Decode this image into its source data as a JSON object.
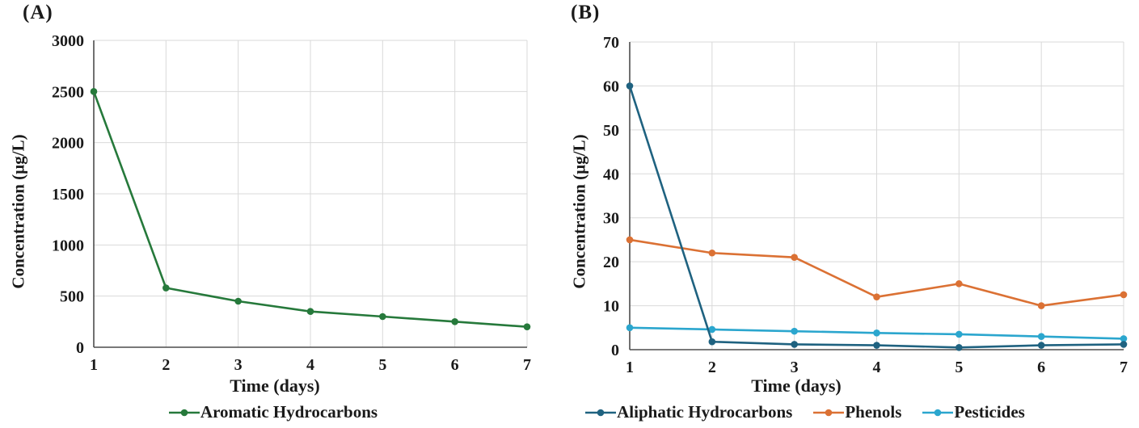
{
  "panel_a": {
    "label": "(A)",
    "y_axis_title": "Concentration (µg/L)",
    "x_axis_title": "Time (days)"
  },
  "panel_b": {
    "label": "(B)",
    "y_axis_title": "Concentration (µg/L)",
    "x_axis_title": "Time (days)"
  },
  "colors": {
    "aromatic_hydrocarbons": "#26793B",
    "aliphatic_hydrocarbons": "#1F6280",
    "phenols": "#DB7134",
    "pesticides": "#2BA6CE",
    "gridline": "#D9D9D9",
    "axis": "#4D4D4D",
    "text": "#1A1A1A"
  },
  "chart_data": [
    {
      "panel": "A",
      "type": "line",
      "title": "",
      "xlabel": "Time (days)",
      "ylabel": "Concentration (µg/L)",
      "x": [
        1,
        2,
        3,
        4,
        5,
        6,
        7
      ],
      "xlim": [
        1,
        7
      ],
      "ylim": [
        0,
        3000
      ],
      "ytick_step": 500,
      "ytick_labels": [
        "0",
        "500",
        "1000",
        "1500",
        "2000",
        "2500",
        "3000"
      ],
      "grid": true,
      "legend_position": "bottom",
      "series": [
        {
          "name": "Aromatic Hydrocarbons",
          "color_key": "aromatic_hydrocarbons",
          "values": [
            2500,
            580,
            450,
            350,
            300,
            250,
            200
          ]
        }
      ]
    },
    {
      "panel": "B",
      "type": "line",
      "title": "",
      "xlabel": "Time (days)",
      "ylabel": "Concentration (µg/L)",
      "x": [
        1,
        2,
        3,
        4,
        5,
        6,
        7
      ],
      "xlim": [
        1,
        7
      ],
      "ylim": [
        0,
        70
      ],
      "ytick_step": 10,
      "ytick_labels": [
        "0",
        "10",
        "20",
        "30",
        "40",
        "50",
        "60",
        "70"
      ],
      "grid": true,
      "legend_position": "bottom",
      "series": [
        {
          "name": "Aliphatic Hydrocarbons",
          "color_key": "aliphatic_hydrocarbons",
          "values": [
            60,
            1.8,
            1.2,
            1,
            0.5,
            1,
            1.2
          ]
        },
        {
          "name": "Phenols",
          "color_key": "phenols",
          "values": [
            25,
            22,
            21,
            12,
            15,
            10,
            12.5
          ]
        },
        {
          "name": "Pesticides",
          "color_key": "pesticides",
          "values": [
            5,
            4.6,
            4.2,
            3.8,
            3.5,
            3,
            2.5
          ]
        }
      ]
    }
  ]
}
